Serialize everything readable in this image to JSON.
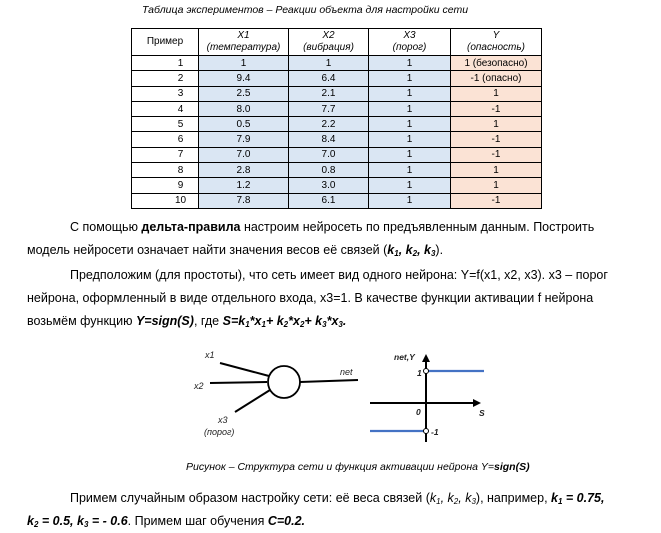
{
  "table_title": "Таблица экспериментов – Реакции объекта для настройки сети",
  "table": {
    "headers": [
      {
        "l1": "Пример",
        "l2": ""
      },
      {
        "l1": "X1",
        "l2": "(температура)"
      },
      {
        "l1": "X2",
        "l2": "(вибрация)"
      },
      {
        "l1": "X3",
        "l2": "(порог)"
      },
      {
        "l1": "Y",
        "l2": "(опасность)"
      }
    ],
    "rows": [
      [
        "1",
        "1",
        "1",
        "1",
        "1 (безопасно)"
      ],
      [
        "2",
        "9.4",
        "6.4",
        "1",
        "-1 (опасно)"
      ],
      [
        "3",
        "2.5",
        "2.1",
        "1",
        "1"
      ],
      [
        "4",
        "8.0",
        "7.7",
        "1",
        "-1"
      ],
      [
        "5",
        "0.5",
        "2.2",
        "1",
        "1"
      ],
      [
        "6",
        "7.9",
        "8.4",
        "1",
        "-1"
      ],
      [
        "7",
        "7.0",
        "7.0",
        "1",
        "-1"
      ],
      [
        "8",
        "2.8",
        "0.8",
        "1",
        "1"
      ],
      [
        "9",
        "1.2",
        "3.0",
        "1",
        "1"
      ],
      [
        "10",
        "7.8",
        "6.1",
        "1",
        "-1"
      ]
    ]
  },
  "p1": {
    "a": "С помощью ",
    "b": "дельта-правила",
    "c": " настроим нейросеть по предъявленным данным. Построить",
    "d": "модель нейросети означает найти значения весов её связей (",
    "e": "k",
    "e1": "1",
    "f": ", k",
    "f1": "2",
    "g": ", k",
    "g1": "3",
    "h": ")."
  },
  "p2": {
    "l1": "Предположим (для простоты), что сеть имеет вид одного нейрона: Y=f(x1, x2, x3). x3 – порог",
    "l2": "нейрона, оформленный в виде отдельного входа, x3=1. В качестве функции активации f нейрона",
    "l3a": "возьмём функцию ",
    "l3b": "Y=sign(S)",
    "l3c": ", где ",
    "l3d": "S=k",
    "l3e": "*x",
    "l3f": "+ k",
    "l3g": "*x",
    "l3h": "+ k",
    "l3i": "*x",
    "l3j": "."
  },
  "figure": {
    "x1": "x1",
    "x2": "x2",
    "x3": "x3",
    "x3_note": "(порог)",
    "net": "net",
    "axis_y": "net,Y",
    "axis_s": "S",
    "one": "1",
    "zero": "0",
    "minus_one": "-1",
    "step_color": "#4472c4",
    "caption_a": "Рисунок – Структура сети и функция активации нейрона Y=",
    "caption_b": "sign(S)"
  },
  "p3": {
    "l1a": "Примем случайным образом настройку сети: её веса связей (",
    "l1b": "k",
    "l1c": ", k",
    "l1d": ", k",
    "l1e": "), например, ",
    "l1f": "k",
    "l1g": " = 0.75,",
    "l2a": "k",
    "l2b": " = 0.5, k",
    "l2c": " = - 0.6",
    "l2d": ". Примем шаг обучения ",
    "l2e": "C=0.2."
  }
}
